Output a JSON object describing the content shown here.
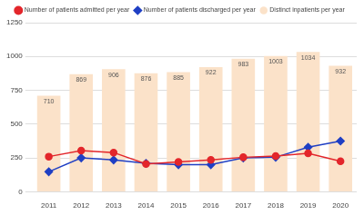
{
  "chart_data": {
    "type": "bar",
    "categories": [
      "2011",
      "2012",
      "2013",
      "2014",
      "2015",
      "2016",
      "2017",
      "2018",
      "2019",
      "2020"
    ],
    "series": [
      {
        "name": "Distinct inpatients per year",
        "type": "bar",
        "color": "#fbe2c9",
        "data_labels": true,
        "values": [
          710,
          869,
          906,
          876,
          885,
          922,
          983,
          1003,
          1034,
          932
        ]
      },
      {
        "name": "Number of patients admitted per year",
        "type": "line",
        "color": "#e3262b",
        "marker": "circle",
        "values": [
          260,
          305,
          290,
          205,
          220,
          235,
          255,
          265,
          285,
          225
        ]
      },
      {
        "name": "Number of patients discharged per year",
        "type": "line",
        "color": "#1f3fc4",
        "marker": "diamond",
        "values": [
          148,
          250,
          235,
          210,
          200,
          200,
          250,
          255,
          330,
          375
        ]
      }
    ],
    "ylim": [
      0,
      1250
    ],
    "yticks": [
      0,
      250,
      500,
      750,
      1000,
      1250
    ],
    "grid": true,
    "legend": "top"
  }
}
